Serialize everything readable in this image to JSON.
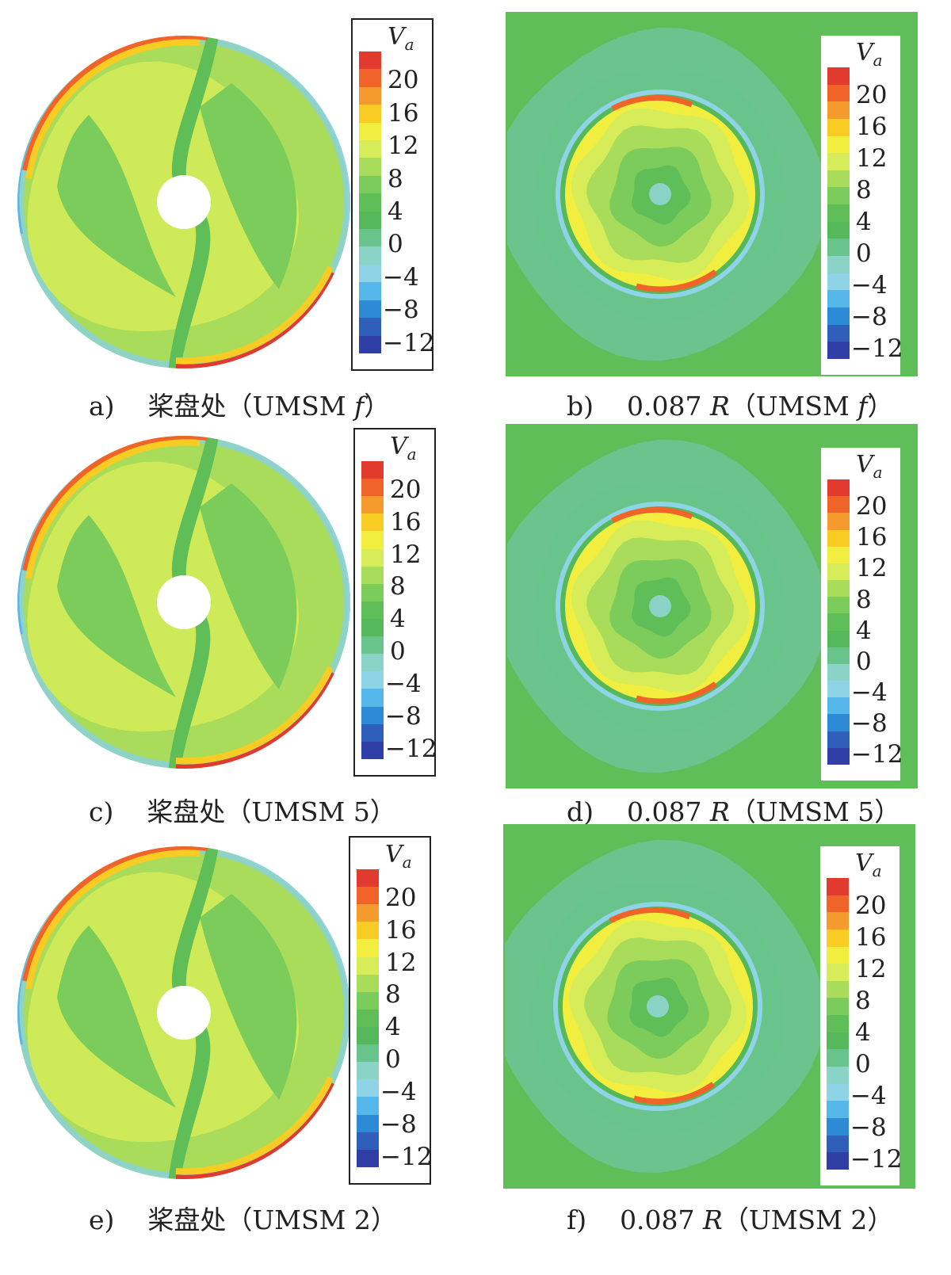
{
  "legend": {
    "title": "V",
    "title_sub": "a",
    "ticks": [
      "20",
      "16",
      "12",
      "8",
      "4",
      "0",
      "−4",
      "−8",
      "−12"
    ],
    "colors": [
      "#e23a2f",
      "#f0642a",
      "#f59a2c",
      "#f8cc22",
      "#f1ee3f",
      "#d6ec58",
      "#a8dc5a",
      "#7bcc5a",
      "#5fbe57",
      "#55b85a",
      "#69c48c",
      "#8bd3c6",
      "#8fd3e6",
      "#56b7ea",
      "#2c8bd4",
      "#2f5fb9",
      "#2f3fa5"
    ]
  },
  "panels": [
    {
      "id": "a",
      "tag": "a)",
      "text": "桨盘处（UMSM ",
      "var": "f",
      "close": "）"
    },
    {
      "id": "b",
      "tag": "b)",
      "text": "0.087 ",
      "var": "R",
      "text2": "（UMSM ",
      "var2": "f",
      "close": "）"
    },
    {
      "id": "c",
      "tag": "c)",
      "text": "桨盘处（UMSM 5）"
    },
    {
      "id": "d",
      "tag": "d)",
      "text": "0.087 ",
      "var": "R",
      "text2": "（UMSM 5）"
    },
    {
      "id": "e",
      "tag": "e)",
      "text": "桨盘处（UMSM 2）"
    },
    {
      "id": "f",
      "tag": "f)",
      "text": "0.087 ",
      "var": "R",
      "text2": "（UMSM 2）"
    }
  ],
  "chart_data": [
    {
      "type": "heatmap",
      "panel": "a",
      "quantity": "V_a",
      "colorbar_range": [
        -12,
        20
      ],
      "colorbar_ticks": [
        20,
        16,
        12,
        8,
        4,
        0,
        -4,
        -8,
        -12
      ]
    },
    {
      "type": "heatmap",
      "panel": "b",
      "quantity": "V_a",
      "colorbar_range": [
        -12,
        20
      ],
      "colorbar_ticks": [
        20,
        16,
        12,
        8,
        4,
        0,
        -4,
        -8,
        -12
      ]
    },
    {
      "type": "heatmap",
      "panel": "c",
      "quantity": "V_a",
      "colorbar_range": [
        -12,
        20
      ],
      "colorbar_ticks": [
        20,
        16,
        12,
        8,
        4,
        0,
        -4,
        -8,
        -12
      ]
    },
    {
      "type": "heatmap",
      "panel": "d",
      "quantity": "V_a",
      "colorbar_range": [
        -12,
        20
      ],
      "colorbar_ticks": [
        20,
        16,
        12,
        8,
        4,
        0,
        -4,
        -8,
        -12
      ]
    },
    {
      "type": "heatmap",
      "panel": "e",
      "quantity": "V_a",
      "colorbar_range": [
        -12,
        20
      ],
      "colorbar_ticks": [
        20,
        16,
        12,
        8,
        4,
        0,
        -4,
        -8,
        -12
      ]
    },
    {
      "type": "heatmap",
      "panel": "f",
      "quantity": "V_a",
      "colorbar_range": [
        -12,
        20
      ],
      "colorbar_ticks": [
        20,
        16,
        12,
        8,
        4,
        0,
        -4,
        -8,
        -12
      ]
    }
  ]
}
